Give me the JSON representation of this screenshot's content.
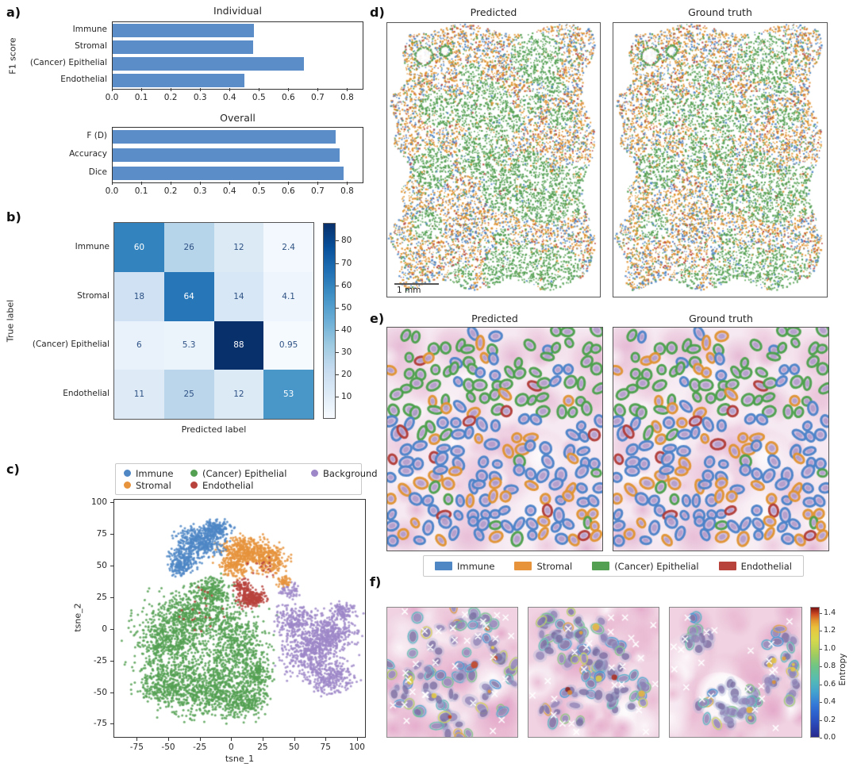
{
  "figure": {
    "background": "#ffffff"
  },
  "colors": {
    "bar_blue": "#5b8dc9",
    "immune": "#4f87c5",
    "stromal": "#e6933c",
    "epithelial": "#54a052",
    "endothelial": "#b8433d",
    "background_class": "#9d87c8",
    "heat_text_dark": "#2e5285",
    "heat_text_light": "#ffffff"
  },
  "chart_data": [
    {
      "id": "individual_f1",
      "type": "bar",
      "orientation": "horizontal",
      "title": "Individual",
      "ylabel": "F1 score",
      "categories": [
        "Immune",
        "Stromal",
        "(Cancer) Epithelial",
        "Endothelial"
      ],
      "values": [
        0.48,
        0.478,
        0.65,
        0.447
      ],
      "xlim": [
        0,
        0.85
      ],
      "xticks": [
        0.0,
        0.1,
        0.2,
        0.3,
        0.4,
        0.5,
        0.6,
        0.7,
        0.8
      ],
      "bar_color": "#5b8dc9"
    },
    {
      "id": "overall_metrics",
      "type": "bar",
      "orientation": "horizontal",
      "title": "Overall",
      "categories": [
        "F (D)",
        "Accuracy",
        "Dice"
      ],
      "values": [
        0.758,
        0.772,
        0.785
      ],
      "xlim": [
        0,
        0.85
      ],
      "xticks": [
        0.0,
        0.1,
        0.2,
        0.3,
        0.4,
        0.5,
        0.6,
        0.7,
        0.8
      ],
      "bar_color": "#5b8dc9"
    },
    {
      "id": "confusion_matrix",
      "type": "heatmap",
      "xlabel": "Predicted label",
      "ylabel": "True label",
      "row_labels": [
        "Immune",
        "Stromal",
        "(Cancer) Epithelial",
        "Endothelial"
      ],
      "matrix": [
        [
          60,
          26,
          12,
          2.4
        ],
        [
          18,
          64,
          14,
          4.1
        ],
        [
          6,
          5.3,
          88,
          0.95
        ],
        [
          11,
          25,
          12,
          53
        ]
      ],
      "vmin": 0,
      "vmax": 88,
      "colormap": "Blues",
      "colorbar_ticks": [
        10,
        20,
        30,
        40,
        50,
        60,
        70,
        80
      ]
    },
    {
      "id": "tsne",
      "type": "scatter",
      "xlabel": "tsne_1",
      "ylabel": "tsne_2",
      "xlim": [
        -93.5,
        107
      ],
      "ylim": [
        -86,
        102.5
      ],
      "xticks": [
        -75,
        -50,
        -25,
        0,
        25,
        50,
        75,
        100
      ],
      "yticks": [
        100,
        75,
        50,
        25,
        0,
        -25,
        -50,
        -75
      ],
      "legend_position": "top",
      "legend": [
        {
          "label": "Immune",
          "color": "#4f87c5"
        },
        {
          "label": "(Cancer) Epithelial",
          "color": "#54a052"
        },
        {
          "label": "Background",
          "color": "#9d87c8"
        },
        {
          "label": "Stromal",
          "color": "#e6933c"
        },
        {
          "label": "Endothelial",
          "color": "#b8433d"
        }
      ],
      "clusters": [
        {
          "label": "(Cancer) Epithelial",
          "color": "#54a052",
          "lobes": [
            [
              -50,
              -10,
              30,
              28,
              600
            ],
            [
              -20,
              -45,
              34,
              26,
              700
            ],
            [
              -30,
              12,
              30,
              22,
              480
            ],
            [
              3,
              -12,
              26,
              30,
              520
            ],
            [
              -55,
              -45,
              20,
              18,
              280
            ],
            [
              10,
              -55,
              22,
              16,
              280
            ],
            [
              -15,
              30,
              16,
              11,
              200
            ],
            [
              20,
              -35,
              12,
              14,
              160
            ]
          ]
        },
        {
          "label": "Background",
          "color": "#9d87c8",
          "lobes": [
            [
              62,
              -15,
              26,
              22,
              550
            ],
            [
              80,
              -2,
              20,
              18,
              320
            ],
            [
              50,
              8,
              15,
              12,
              180
            ],
            [
              78,
              -38,
              20,
              13,
              260
            ],
            [
              88,
              15,
              10,
              8,
              90
            ],
            [
              45,
              30,
              8,
              7,
              60
            ]
          ]
        },
        {
          "label": "Stromal",
          "color": "#e6933c",
          "lobes": [
            [
              12,
              62,
              22,
              12,
              430
            ],
            [
              30,
              55,
              15,
              11,
              210
            ],
            [
              2,
              50,
              12,
              8,
              130
            ],
            [
              42,
              38,
              6,
              5,
              45
            ]
          ]
        },
        {
          "label": "Immune",
          "color": "#4f87c5",
          "lobes": [
            [
              -25,
              70,
              20,
              12,
              430
            ],
            [
              -38,
              56,
              12,
              10,
              190
            ],
            [
              -12,
              79,
              12,
              8,
              160
            ],
            [
              -42,
              47,
              7,
              6,
              60
            ]
          ]
        },
        {
          "label": "Endothelial",
          "color": "#b8433d",
          "lobes": [
            [
              15,
              25,
              13,
              8,
              260
            ],
            [
              8,
              35,
              7,
              5,
              60
            ],
            [
              -20,
              15,
              28,
              22,
              22
            ],
            [
              25,
              50,
              12,
              10,
              16
            ]
          ]
        }
      ]
    }
  ],
  "panels": {
    "a": {
      "label": "a)"
    },
    "b": {
      "label": "b)"
    },
    "c": {
      "label": "c)"
    },
    "d": {
      "label": "d)",
      "titles": [
        "Predicted",
        "Ground truth"
      ],
      "scalebar_label": "1 mm",
      "class_colors": {
        "g": "#54a052",
        "o": "#e0922f",
        "b": "#4f87c5",
        "r": "#b8433d"
      }
    },
    "e": {
      "label": "e)",
      "titles": [
        "Predicted",
        "Ground truth"
      ],
      "legend": [
        {
          "label": "Immune",
          "color": "#4f87c5"
        },
        {
          "label": "Stromal",
          "color": "#e6933c"
        },
        {
          "label": "(Cancer) Epithelial",
          "color": "#54a052"
        },
        {
          "label": "Endothelial",
          "color": "#b8433d"
        }
      ],
      "class_colors": {
        "g": "#4aa04a",
        "o": "#e0922f",
        "b": "#4a82c8",
        "r": "#b03a35"
      }
    },
    "f": {
      "label": "f)",
      "colorbar": {
        "label": "Entropy",
        "ticks": [
          0.0,
          0.2,
          0.4,
          0.6,
          0.8,
          1.0,
          1.2,
          1.4
        ],
        "vmin": 0.0,
        "vmax": 1.47,
        "stops": [
          [
            0,
            "#28288c"
          ],
          [
            0.12,
            "#2a4fc0"
          ],
          [
            0.24,
            "#3273d8"
          ],
          [
            0.34,
            "#41a0d2"
          ],
          [
            0.44,
            "#55bcb4"
          ],
          [
            0.54,
            "#6cc488"
          ],
          [
            0.64,
            "#a2cc5e"
          ],
          [
            0.74,
            "#d4da4c"
          ],
          [
            0.84,
            "#ecc83e"
          ],
          [
            0.91,
            "#e08a2c"
          ],
          [
            0.96,
            "#c83a20"
          ],
          [
            1,
            "#7a1212"
          ]
        ]
      },
      "tiles": [
        {
          "zones": [
            [
              0.5,
              0.5,
              0.52,
              0.52,
              95
            ]
          ],
          "lumen": null,
          "x_count": 32,
          "hot": 9
        },
        {
          "zones": [
            [
              0.25,
              0.25,
              0.2,
              0.24,
              32
            ],
            [
              0.55,
              0.35,
              0.2,
              0.26,
              30
            ],
            [
              0.75,
              0.62,
              0.16,
              0.22,
              22
            ],
            [
              0.35,
              0.78,
              0.26,
              0.16,
              16
            ]
          ],
          "lumen": null,
          "x_count": 26,
          "hot": 7
        },
        {
          "zones": [
            [
              0.45,
              0.74,
              0.24,
              0.17,
              36
            ],
            [
              0.85,
              0.45,
              0.13,
              0.32,
              26
            ],
            [
              0.2,
              0.2,
              0.13,
              0.13,
              12
            ]
          ],
          "lumen": [
            0.42,
            0.7,
            0.17,
            0.12
          ],
          "x_count": 22,
          "hot": 8
        }
      ]
    }
  }
}
